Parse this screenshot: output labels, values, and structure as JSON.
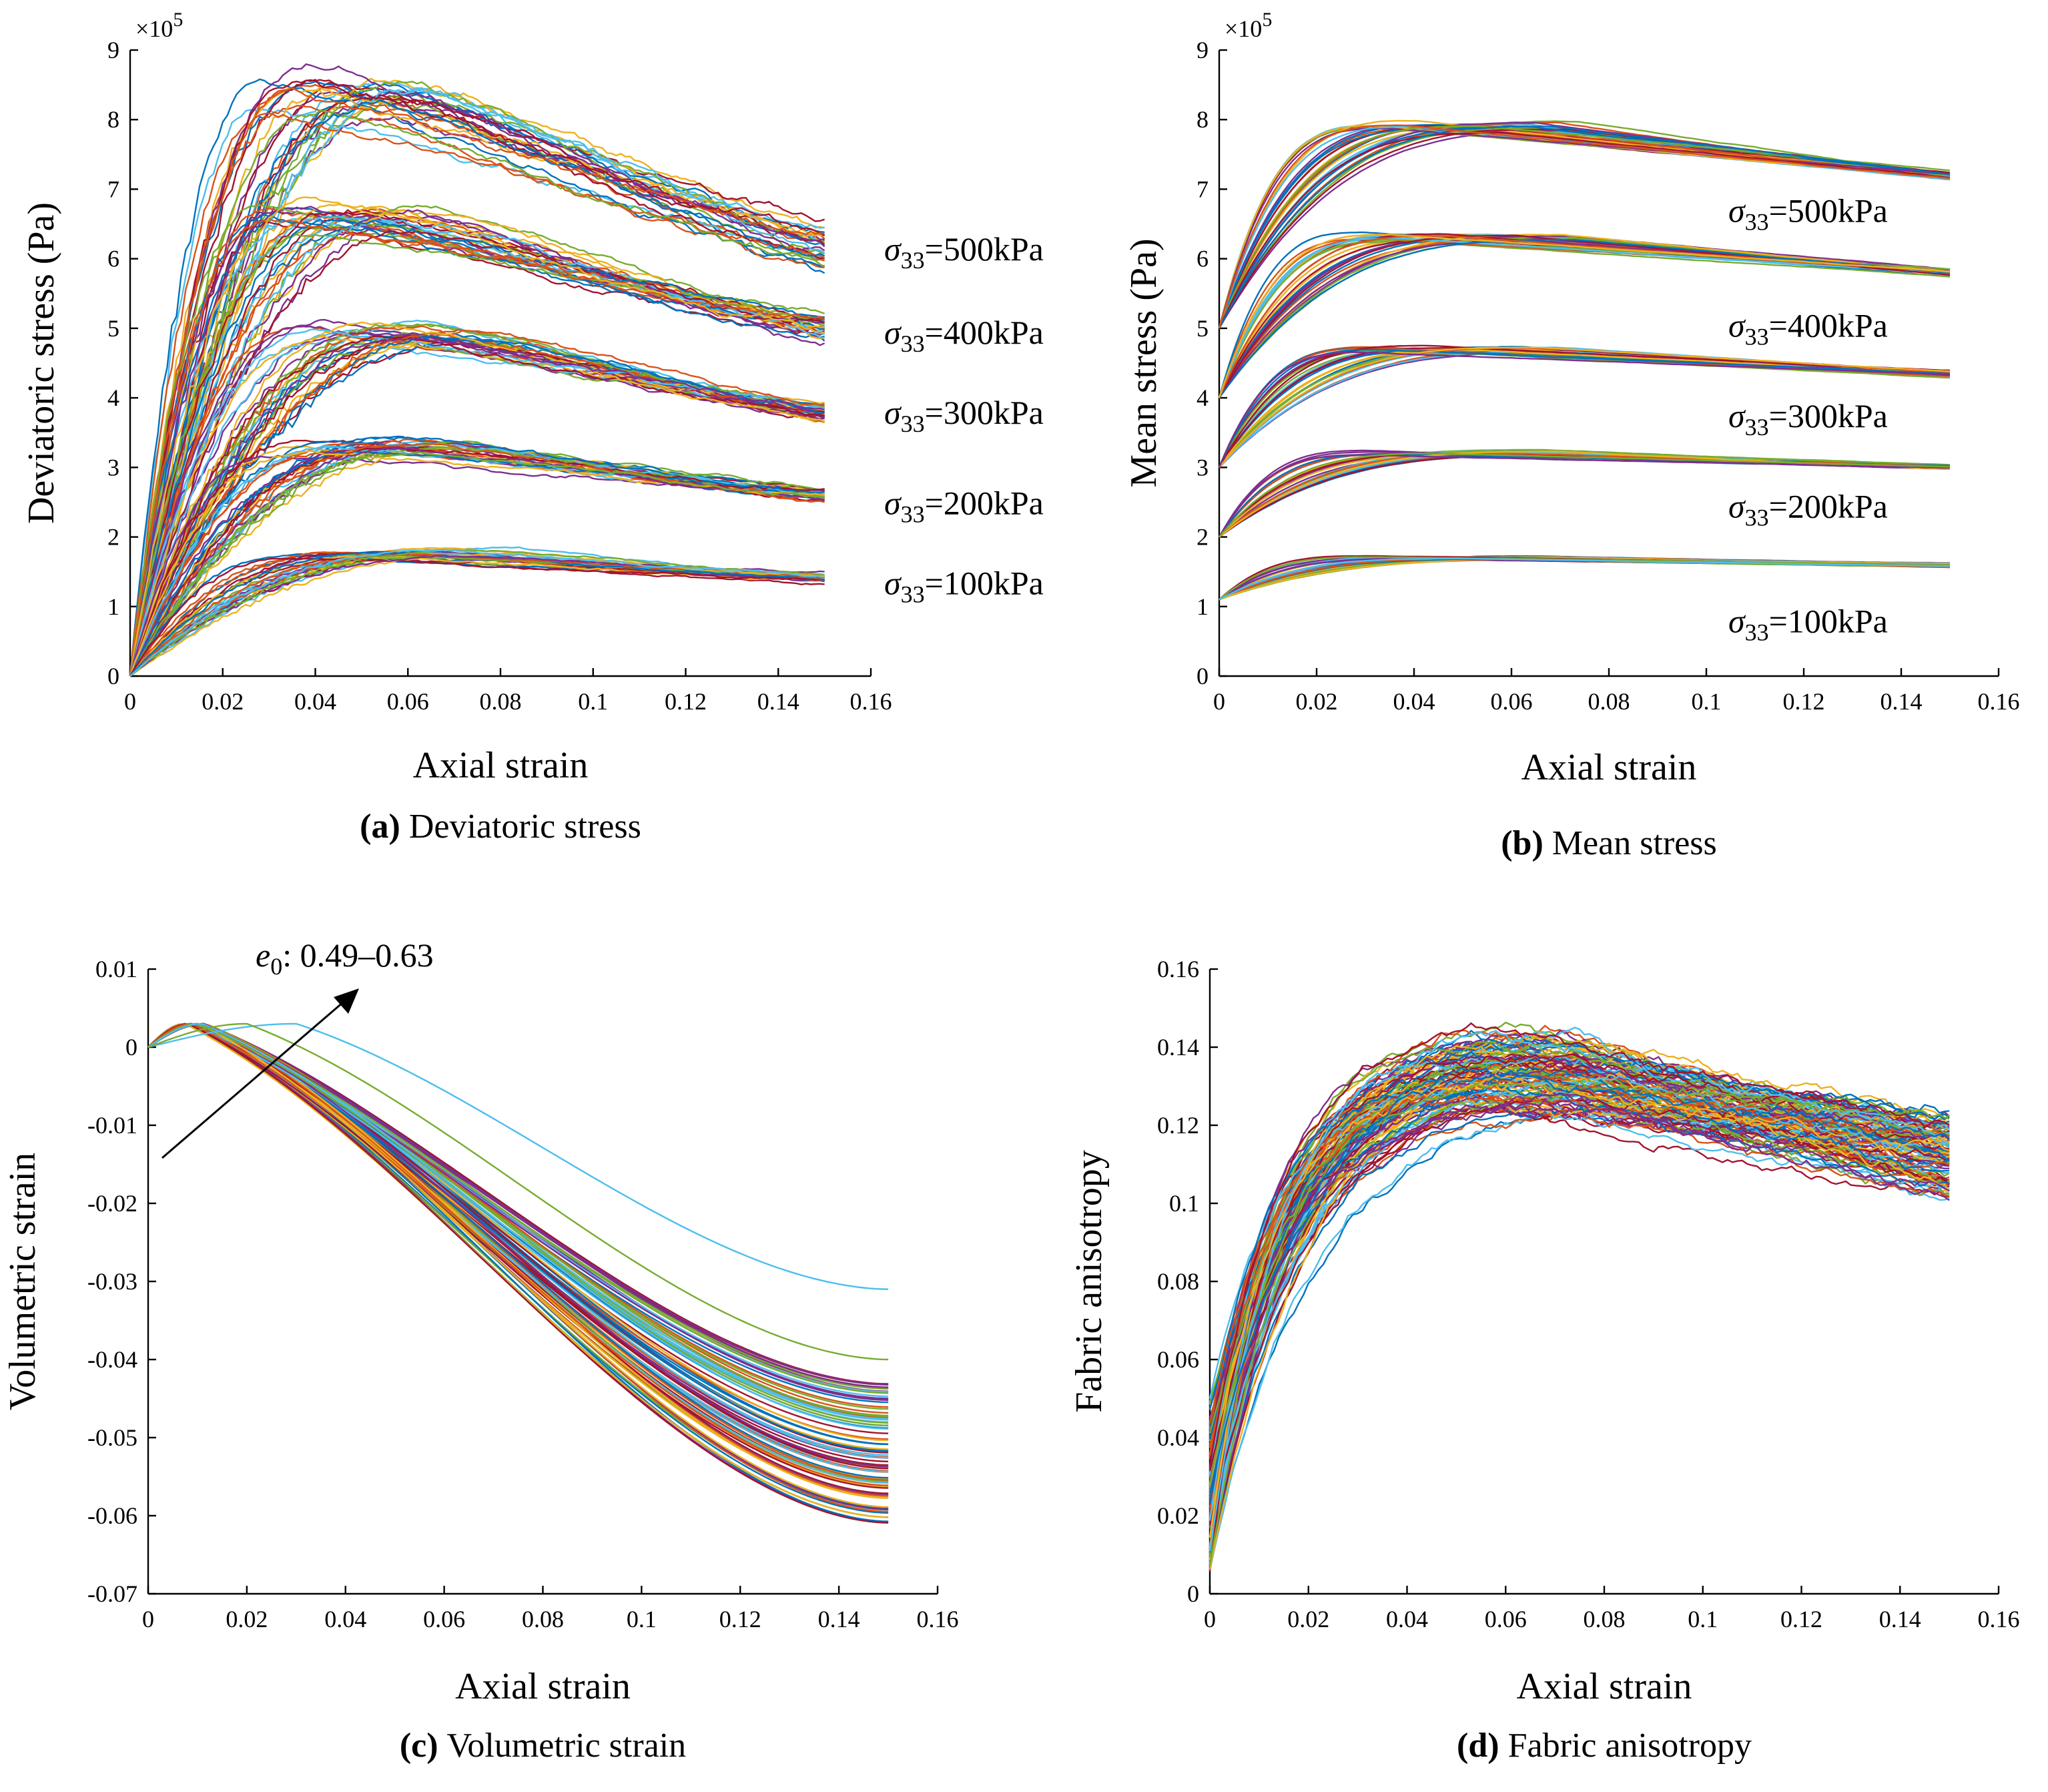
{
  "palette": [
    "#0072BD",
    "#D95319",
    "#EDB120",
    "#7E2F8E",
    "#77AC30",
    "#4DBEEE",
    "#A2142F"
  ],
  "chart_data": [
    {
      "id": "a",
      "type": "line",
      "title": "Deviatoric stress",
      "caption_letter": "(a)",
      "xlabel": "Axial strain",
      "ylabel": "Deviatoric stress (Pa)",
      "xlim": [
        0,
        0.16
      ],
      "ylim": [
        0,
        9
      ],
      "y_multiplier": "×10",
      "y_multiplier_exp": "5",
      "xticks": [
        "0",
        "0.02",
        "0.04",
        "0.06",
        "0.08",
        "0.1",
        "0.12",
        "0.14",
        "0.16"
      ],
      "yticks": [
        "0",
        "1",
        "2",
        "3",
        "4",
        "5",
        "6",
        "7",
        "8",
        "9"
      ],
      "x_end": 0.15,
      "curves_per_group": 30,
      "groups": [
        {
          "label_sym": "σ",
          "label_sub": "33",
          "label_rest": "=500kPa",
          "label_y": 6.15,
          "start": 0,
          "peak": 8.4,
          "peak_x": 0.045,
          "end": 6.2,
          "spread": 0.45
        },
        {
          "label_sym": "σ",
          "label_sub": "33",
          "label_rest": "=400kPa",
          "label_y": 4.95,
          "start": 0,
          "peak": 6.6,
          "peak_x": 0.045,
          "end": 5.0,
          "spread": 0.35
        },
        {
          "label_sym": "σ",
          "label_sub": "33",
          "label_rest": "=300kPa",
          "label_y": 3.8,
          "start": 0,
          "peak": 4.95,
          "peak_x": 0.05,
          "end": 3.8,
          "spread": 0.28
        },
        {
          "label_sym": "σ",
          "label_sub": "33",
          "label_rest": "=200kPa",
          "label_y": 2.5,
          "start": 0,
          "peak": 3.3,
          "peak_x": 0.05,
          "end": 2.6,
          "spread": 0.2
        },
        {
          "label_sym": "σ",
          "label_sub": "33",
          "label_rest": "=100kPa",
          "label_y": 1.35,
          "start": 0,
          "peak": 1.75,
          "peak_x": 0.055,
          "end": 1.4,
          "spread": 0.12
        }
      ]
    },
    {
      "id": "b",
      "type": "line",
      "title": "Mean stress",
      "caption_letter": "(b)",
      "xlabel": "Axial strain",
      "ylabel": "Mean stress (Pa)",
      "xlim": [
        0,
        0.16
      ],
      "ylim": [
        0,
        9
      ],
      "y_multiplier": "×10",
      "y_multiplier_exp": "5",
      "xticks": [
        "0",
        "0.02",
        "0.04",
        "0.06",
        "0.08",
        "0.1",
        "0.12",
        "0.14",
        "0.16"
      ],
      "yticks": [
        "0",
        "1",
        "2",
        "3",
        "4",
        "5",
        "6",
        "7",
        "8",
        "9"
      ],
      "x_end": 0.15,
      "curves_per_group": 30,
      "groups": [
        {
          "label_sym": "σ",
          "label_sub": "33",
          "label_rest": "=500kPa",
          "label_y": 6.7,
          "start": 5.0,
          "peak": 7.9,
          "peak_x": 0.05,
          "end": 7.2,
          "spread": 0.12
        },
        {
          "label_sym": "σ",
          "label_sub": "33",
          "label_rest": "=400kPa",
          "label_y": 5.05,
          "start": 4.0,
          "peak": 6.3,
          "peak_x": 0.05,
          "end": 5.8,
          "spread": 0.1
        },
        {
          "label_sym": "σ",
          "label_sub": "33",
          "label_rest": "=300kPa",
          "label_y": 3.75,
          "start": 3.0,
          "peak": 4.7,
          "peak_x": 0.05,
          "end": 4.35,
          "spread": 0.08
        },
        {
          "label_sym": "σ",
          "label_sub": "33",
          "label_rest": "=200kPa",
          "label_y": 2.45,
          "start": 2.0,
          "peak": 3.2,
          "peak_x": 0.05,
          "end": 3.0,
          "spread": 0.07
        },
        {
          "label_sym": "σ",
          "label_sub": "33",
          "label_rest": "=100kPa",
          "label_y": 0.8,
          "start": 1.1,
          "peak": 1.7,
          "peak_x": 0.05,
          "end": 1.6,
          "spread": 0.05
        }
      ]
    },
    {
      "id": "c",
      "type": "line",
      "title": "Volumetric strain",
      "caption_letter": "(c)",
      "xlabel": "Axial strain",
      "ylabel": "Volumetric strain",
      "xlim": [
        0,
        0.16
      ],
      "ylim": [
        -0.07,
        0.01
      ],
      "xticks": [
        "0",
        "0.02",
        "0.04",
        "0.06",
        "0.08",
        "0.1",
        "0.12",
        "0.14",
        "0.16"
      ],
      "yticks": [
        "-0.07",
        "-0.06",
        "-0.05",
        "-0.04",
        "-0.03",
        "-0.02",
        "-0.01",
        "0",
        "0.01"
      ],
      "x_end": 0.15,
      "n_curves": 90,
      "peak_x": 0.009,
      "peak_value": 0.003,
      "end_range": [
        -0.061,
        -0.043
      ],
      "outliers": [
        {
          "end": -0.031,
          "peak_x": 0.03
        },
        {
          "end": -0.04,
          "peak_x": 0.02
        }
      ],
      "annotation": {
        "sym": "e",
        "sub": "0",
        "text": ": 0.49–0.63"
      }
    },
    {
      "id": "d",
      "type": "line",
      "title": "Fabric anisotropy",
      "caption_letter": "(d)",
      "xlabel": "Axial strain",
      "ylabel": "Fabric anisotropy",
      "xlim": [
        0,
        0.16
      ],
      "ylim": [
        0,
        0.16
      ],
      "xticks": [
        "0",
        "0.02",
        "0.04",
        "0.06",
        "0.08",
        "0.1",
        "0.12",
        "0.14",
        "0.16"
      ],
      "yticks": [
        "0",
        "0.02",
        "0.04",
        "0.06",
        "0.08",
        "0.1",
        "0.12",
        "0.14",
        "0.16"
      ],
      "x_end": 0.15,
      "n_curves": 120,
      "peak_x": 0.065,
      "peak_range": [
        0.123,
        0.145
      ],
      "end_range": [
        0.1,
        0.123
      ]
    }
  ]
}
